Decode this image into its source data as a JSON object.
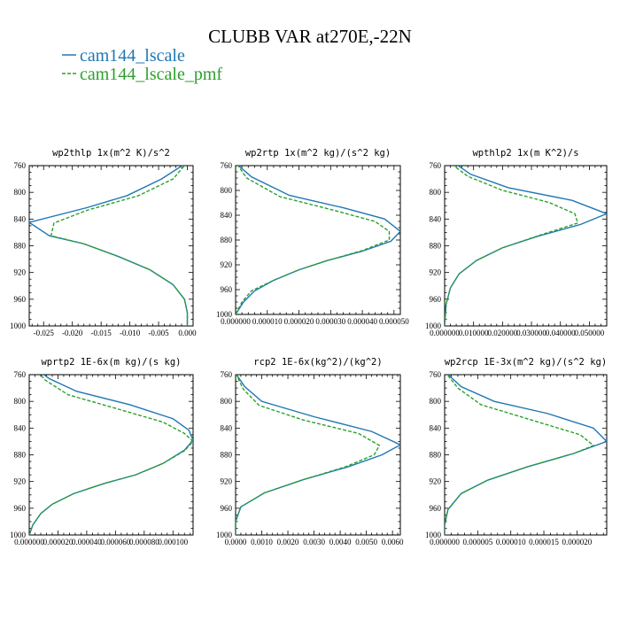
{
  "title": "CLUBB VAR at270E,-22N",
  "colors": {
    "s1": "#1f77b4",
    "s2": "#2ca02c"
  },
  "legend": [
    {
      "name": "cam144_lscale",
      "color": "#1f77b4",
      "dash": false
    },
    {
      "name": "cam144_lscale_pmf",
      "color": "#2ca02c",
      "dash": true
    }
  ],
  "chart_data": [
    {
      "type": "line",
      "title": "wp2thlp  1x(m^2 K)/s^2",
      "xlim": [
        -0.0275,
        0.001
      ],
      "ylim": [
        760,
        1000
      ],
      "y_inverted": true,
      "xticks": [
        -0.025,
        -0.02,
        -0.015,
        -0.01,
        -0.005,
        0.0
      ],
      "xtick_labels": [
        "-0.025",
        "-0.020",
        "-0.015",
        "-0.010",
        "-0.005",
        "0.000"
      ],
      "yticks": [
        760,
        800,
        840,
        880,
        920,
        960,
        1000
      ],
      "series": [
        {
          "name": "cam144_lscale",
          "points": [
            [
              0.0,
              755
            ],
            [
              -0.0045,
              780
            ],
            [
              -0.0105,
              805
            ],
            [
              -0.0175,
              823
            ],
            [
              -0.0275,
              845
            ],
            [
              -0.024,
              865
            ],
            [
              -0.018,
              877
            ],
            [
              -0.012,
              896
            ],
            [
              -0.0065,
              916
            ],
            [
              -0.0025,
              938
            ],
            [
              -0.0005,
              960
            ],
            [
              0.0,
              980
            ],
            [
              0.0,
              1000
            ]
          ]
        },
        {
          "name": "cam144_lscale_pmf",
          "points": [
            [
              0.0,
              755
            ],
            [
              -0.0025,
              780
            ],
            [
              -0.0085,
              805
            ],
            [
              -0.0175,
              827
            ],
            [
              -0.0232,
              846
            ],
            [
              -0.0237,
              865
            ],
            [
              -0.018,
              877
            ],
            [
              -0.012,
              896
            ],
            [
              -0.0065,
              916
            ],
            [
              -0.0025,
              938
            ],
            [
              -0.0005,
              960
            ],
            [
              0.0,
              980
            ],
            [
              0.0,
              1000
            ]
          ]
        }
      ]
    },
    {
      "type": "line",
      "title": "wp2rtp  1x(m^2 kg)/(s^2 kg)",
      "xlim": [
        0.0,
        5.2e-05
      ],
      "ylim": [
        760,
        1000
      ],
      "y_inverted": true,
      "xticks": [
        0.0,
        1e-05,
        2e-05,
        3e-05,
        4e-05,
        5e-05
      ],
      "xtick_labels": [
        "0.000000",
        "0.000010",
        "0.000020",
        "0.000030",
        "0.000040",
        "0.000050"
      ],
      "yticks": [
        760,
        800,
        840,
        880,
        920,
        960,
        1000
      ],
      "series": [
        {
          "name": "cam144_lscale",
          "points": [
            [
              5e-07,
              758
            ],
            [
              5e-06,
              778
            ],
            [
              1.7e-05,
              808
            ],
            [
              3.4e-05,
              828
            ],
            [
              4.7e-05,
              846
            ],
            [
              5.2e-05,
              866
            ],
            [
              4.9e-05,
              882
            ],
            [
              4e-05,
              898
            ],
            [
              2.9e-05,
              913
            ],
            [
              2e-05,
              928
            ],
            [
              1.2e-05,
              945
            ],
            [
              6e-06,
              962
            ],
            [
              2.5e-06,
              980
            ],
            [
              0.0,
              1000
            ]
          ]
        },
        {
          "name": "cam144_lscale_pmf",
          "points": [
            [
              5e-07,
              758
            ],
            [
              3.5e-06,
              780
            ],
            [
              1.4e-05,
              810
            ],
            [
              3.1e-05,
              832
            ],
            [
              4.4e-05,
              850
            ],
            [
              4.85e-05,
              866
            ],
            [
              4.85e-05,
              880
            ],
            [
              4e-05,
              897
            ],
            [
              2.9e-05,
              913
            ],
            [
              2e-05,
              928
            ],
            [
              1.2e-05,
              945
            ],
            [
              5e-06,
              962
            ],
            [
              2e-06,
              980
            ],
            [
              0.0,
              1000
            ]
          ]
        }
      ]
    },
    {
      "type": "line",
      "title": "wpthlp2  1x(m K^2)/s",
      "xlim": [
        0.0,
        0.056
      ],
      "ylim": [
        760,
        1000
      ],
      "y_inverted": true,
      "xticks": [
        0.0,
        0.01,
        0.02,
        0.03,
        0.04,
        0.05
      ],
      "xtick_labels": [
        "0.000000",
        "0.010000",
        "0.020000",
        "0.030000",
        "0.040000",
        "0.050000"
      ],
      "yticks": [
        760,
        800,
        840,
        880,
        920,
        960,
        1000
      ],
      "series": [
        {
          "name": "cam144_lscale",
          "points": [
            [
              0.003,
              755
            ],
            [
              0.009,
              773
            ],
            [
              0.022,
              793
            ],
            [
              0.044,
              812
            ],
            [
              0.056,
              832
            ],
            [
              0.047,
              848
            ],
            [
              0.032,
              866
            ],
            [
              0.02,
              883
            ],
            [
              0.011,
              902
            ],
            [
              0.005,
              922
            ],
            [
              0.002,
              943
            ],
            [
              0.0005,
              968
            ],
            [
              0.0,
              1000
            ]
          ]
        },
        {
          "name": "cam144_lscale_pmf",
          "points": [
            [
              0.0025,
              758
            ],
            [
              0.008,
              776
            ],
            [
              0.02,
              797
            ],
            [
              0.036,
              815
            ],
            [
              0.045,
              832
            ],
            [
              0.046,
              846
            ],
            [
              0.033,
              864
            ],
            [
              0.02,
              883
            ],
            [
              0.011,
              902
            ],
            [
              0.005,
              922
            ],
            [
              0.002,
              943
            ],
            [
              0.0005,
              968
            ],
            [
              0.0,
              1000
            ]
          ]
        }
      ]
    },
    {
      "type": "line",
      "title": "wprtp2  1E-6x(m kg)/(s kg)",
      "xlim": [
        0.0,
        0.000114
      ],
      "ylim": [
        760,
        1000
      ],
      "y_inverted": true,
      "xticks": [
        0.0,
        2e-05,
        4e-05,
        6e-05,
        8e-05,
        0.0001
      ],
      "xtick_labels": [
        "0.000000",
        "0.000020",
        "0.000040",
        "0.000060",
        "0.000080",
        "0.000100"
      ],
      "yticks": [
        760,
        800,
        840,
        880,
        920,
        960,
        1000
      ],
      "series": [
        {
          "name": "cam144_lscale",
          "points": [
            [
              7e-06,
              755
            ],
            [
              1.4e-05,
              766
            ],
            [
              3.3e-05,
              785
            ],
            [
              7e-05,
              805
            ],
            [
              0.0001,
              826
            ],
            [
              0.000111,
              843
            ],
            [
              0.000114,
              858
            ],
            [
              0.000108,
              873
            ],
            [
              9.3e-05,
              893
            ],
            [
              7.4e-05,
              910
            ],
            [
              5.2e-05,
              923
            ],
            [
              3.1e-05,
              938
            ],
            [
              1.6e-05,
              954
            ],
            [
              8e-06,
              968
            ],
            [
              2.5e-06,
              985
            ],
            [
              0.0,
              1000
            ]
          ]
        },
        {
          "name": "cam144_lscale_pmf",
          "points": [
            [
              6e-06,
              755
            ],
            [
              1.1e-05,
              768
            ],
            [
              2.7e-05,
              790
            ],
            [
              6.1e-05,
              811
            ],
            [
              9.3e-05,
              831
            ],
            [
              0.000108,
              848
            ],
            [
              0.000114,
              860
            ],
            [
              0.000108,
              874
            ],
            [
              9.3e-05,
              893
            ],
            [
              7.4e-05,
              910
            ],
            [
              5.2e-05,
              923
            ],
            [
              3.1e-05,
              938
            ],
            [
              1.6e-05,
              954
            ],
            [
              8e-06,
              968
            ],
            [
              2.5e-06,
              985
            ],
            [
              0.0,
              1000
            ]
          ]
        }
      ]
    },
    {
      "type": "line",
      "title": "rcp2  1E-6x(kg^2)/(kg^2)",
      "xlim": [
        0.0,
        0.0063
      ],
      "ylim": [
        760,
        1000
      ],
      "y_inverted": true,
      "xticks": [
        0.0,
        0.001,
        0.002,
        0.003,
        0.004,
        0.005,
        0.006
      ],
      "xtick_labels": [
        "0.0000",
        "0.0010",
        "0.0020",
        "0.0030",
        "0.0040",
        "0.0050",
        "0.0060"
      ],
      "yticks": [
        760,
        800,
        840,
        880,
        920,
        960,
        1000
      ],
      "series": [
        {
          "name": "cam144_lscale",
          "points": [
            [
              0.0,
              758
            ],
            [
              0.00035,
              778
            ],
            [
              0.001,
              800
            ],
            [
              0.003,
              823
            ],
            [
              0.0052,
              845
            ],
            [
              0.0063,
              865
            ],
            [
              0.0056,
              880
            ],
            [
              0.0043,
              898
            ],
            [
              0.0026,
              917
            ],
            [
              0.0011,
              937
            ],
            [
              0.0002,
              958
            ],
            [
              0.0,
              980
            ],
            [
              0.0,
              1000
            ]
          ]
        },
        {
          "name": "cam144_lscale_pmf",
          "points": [
            [
              0.0,
              758
            ],
            [
              0.0003,
              782
            ],
            [
              0.0009,
              806
            ],
            [
              0.0026,
              828
            ],
            [
              0.0047,
              848
            ],
            [
              0.0055,
              866
            ],
            [
              0.0053,
              880
            ],
            [
              0.0042,
              898
            ],
            [
              0.0026,
              917
            ],
            [
              0.0011,
              937
            ],
            [
              0.0002,
              958
            ],
            [
              0.0,
              980
            ],
            [
              0.0,
              1000
            ]
          ]
        }
      ]
    },
    {
      "type": "line",
      "title": "wp2rcp  1E-3x(m^2 kg)/(s^2 kg)",
      "xlim": [
        0.0,
        2.45e-05
      ],
      "ylim": [
        760,
        1000
      ],
      "y_inverted": true,
      "xticks": [
        0.0,
        5e-06,
        1e-05,
        1.5e-05,
        2e-05
      ],
      "xtick_labels": [
        "0.000000",
        "0.000005",
        "0.000010",
        "0.000015",
        "0.000020"
      ],
      "yticks": [
        760,
        800,
        840,
        880,
        920,
        960,
        1000
      ],
      "series": [
        {
          "name": "cam144_lscale",
          "points": [
            [
              0.0,
              755
            ],
            [
              2.5e-06,
              778
            ],
            [
              7.5e-06,
              800
            ],
            [
              1.55e-05,
              818
            ],
            [
              2.25e-05,
              840
            ],
            [
              2.45e-05,
              860
            ],
            [
              1.95e-05,
              878
            ],
            [
              1.25e-05,
              898
            ],
            [
              6.5e-06,
              918
            ],
            [
              2.5e-06,
              938
            ],
            [
              5e-07,
              962
            ],
            [
              0.0,
              985
            ],
            [
              0.0,
              1000
            ]
          ]
        },
        {
          "name": "cam144_lscale_pmf",
          "points": [
            [
              0.0,
              755
            ],
            [
              2e-06,
              780
            ],
            [
              5.5e-06,
              805
            ],
            [
              1.25e-05,
              826
            ],
            [
              2.05e-05,
              850
            ],
            [
              2.25e-05,
              866
            ],
            [
              1.95e-05,
              878
            ],
            [
              1.25e-05,
              898
            ],
            [
              6.5e-06,
              918
            ],
            [
              2.5e-06,
              938
            ],
            [
              5e-07,
              962
            ],
            [
              0.0,
              985
            ],
            [
              0.0,
              1000
            ]
          ]
        }
      ]
    }
  ]
}
